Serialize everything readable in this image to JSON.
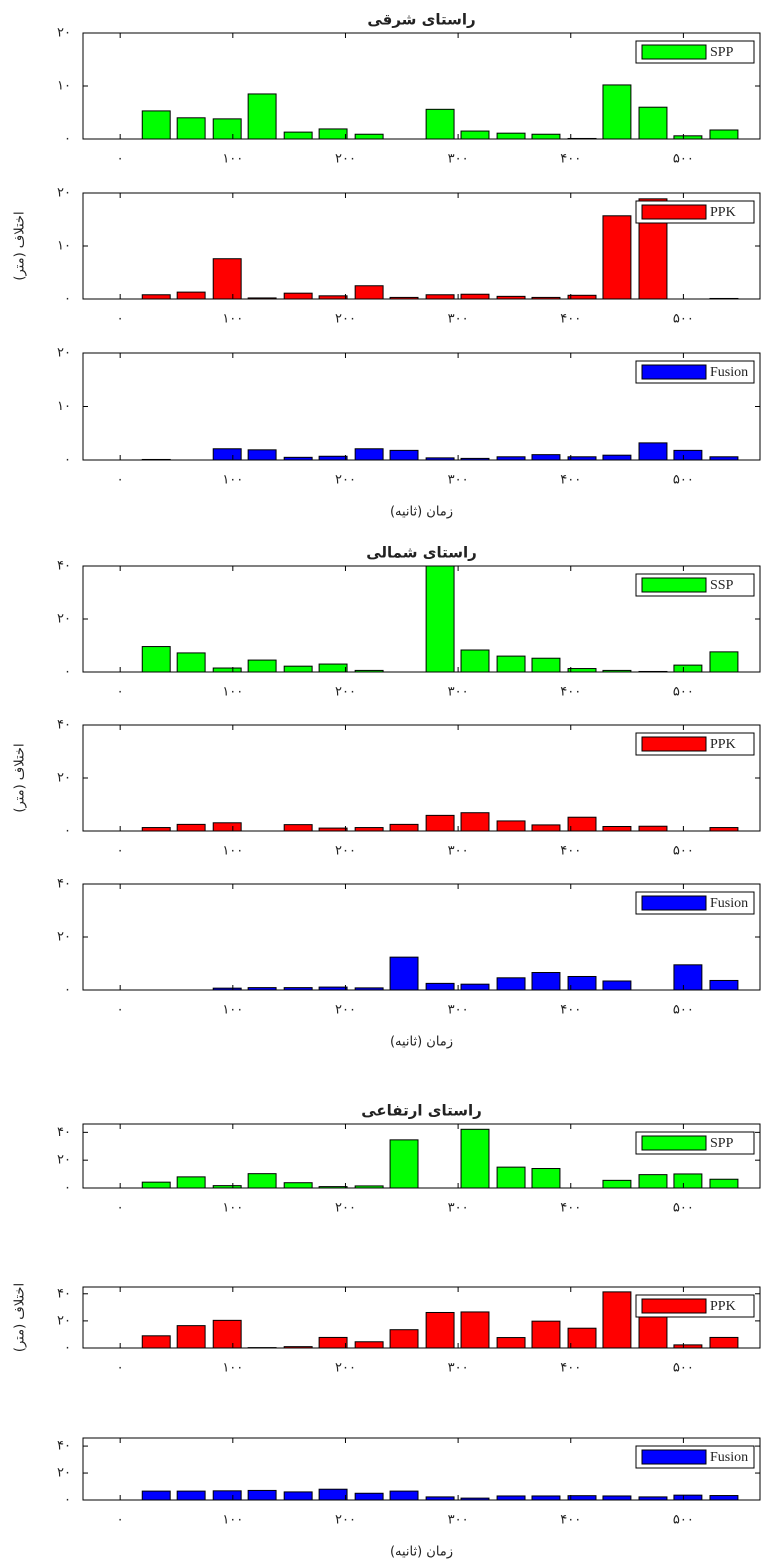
{
  "chart_data": [
    {
      "type": "bar",
      "title": "راستای شرقی",
      "x": [
        32,
        63,
        95,
        126,
        158,
        189,
        221,
        252,
        284,
        315,
        347,
        378,
        410,
        441,
        473,
        504,
        536
      ],
      "series": [
        {
          "name": "SPP",
          "color": "#00ff00",
          "values": [
            5.3,
            4.0,
            3.8,
            8.5,
            1.3,
            1.9,
            0.9,
            0,
            5.6,
            1.5,
            1.1,
            0.9,
            0.1,
            10.2,
            6.0,
            0.6,
            1.7
          ]
        }
      ],
      "xlim": [
        -33,
        568
      ],
      "xticks": [
        {
          "value": 0,
          "label": "۰"
        },
        {
          "value": 100,
          "label": "۱۰۰"
        },
        {
          "value": 200,
          "label": "۲۰۰"
        },
        {
          "value": 300,
          "label": "۳۰۰"
        },
        {
          "value": 400,
          "label": "۴۰۰"
        },
        {
          "value": 500,
          "label": "۵۰۰"
        }
      ],
      "ylim": [
        0,
        20
      ],
      "yticks": [
        {
          "value": 0,
          "label": "۰"
        },
        {
          "value": 10,
          "label": "۱۰"
        },
        {
          "value": 20,
          "label": "۲۰"
        }
      ],
      "legend": "upper right"
    },
    {
      "type": "bar",
      "ylabel": "اختلاف (متر)",
      "x": [
        32,
        63,
        95,
        126,
        158,
        189,
        221,
        252,
        284,
        315,
        347,
        378,
        410,
        441,
        473,
        504,
        536
      ],
      "series": [
        {
          "name": "PPK",
          "color": "#ff0000",
          "values": [
            0.8,
            1.3,
            7.6,
            0.2,
            1.1,
            0.6,
            2.5,
            0.3,
            0.8,
            0.9,
            0.5,
            0.3,
            0.7,
            15.7,
            18.9,
            0,
            0.1
          ]
        }
      ],
      "xlim": [
        -33,
        568
      ],
      "xticks": [
        {
          "value": 0,
          "label": "۰"
        },
        {
          "value": 100,
          "label": "۱۰۰"
        },
        {
          "value": 200,
          "label": "۲۰۰"
        },
        {
          "value": 300,
          "label": "۳۰۰"
        },
        {
          "value": 400,
          "label": "۴۰۰"
        },
        {
          "value": 500,
          "label": "۵۰۰"
        }
      ],
      "ylim": [
        0,
        20
      ],
      "yticks": [
        {
          "value": 0,
          "label": "۰"
        },
        {
          "value": 10,
          "label": "۱۰"
        },
        {
          "value": 20,
          "label": "۲۰"
        }
      ],
      "legend": "upper right"
    },
    {
      "type": "bar",
      "xlabel": "زمان (ثانیه)",
      "x": [
        32,
        63,
        95,
        126,
        158,
        189,
        221,
        252,
        284,
        315,
        347,
        378,
        410,
        441,
        473,
        504,
        536
      ],
      "series": [
        {
          "name": "Fusion",
          "color": "#0000ff",
          "values": [
            0.1,
            0,
            2.1,
            1.9,
            0.5,
            0.7,
            2.1,
            1.8,
            0.4,
            0.3,
            0.6,
            1.0,
            0.6,
            0.9,
            3.2,
            1.8,
            0.6
          ]
        }
      ],
      "xlim": [
        -33,
        568
      ],
      "xticks": [
        {
          "value": 0,
          "label": "۰"
        },
        {
          "value": 100,
          "label": "۱۰۰"
        },
        {
          "value": 200,
          "label": "۲۰۰"
        },
        {
          "value": 300,
          "label": "۳۰۰"
        },
        {
          "value": 400,
          "label": "۴۰۰"
        },
        {
          "value": 500,
          "label": "۵۰۰"
        }
      ],
      "ylim": [
        0,
        20
      ],
      "yticks": [
        {
          "value": 0,
          "label": "۰"
        },
        {
          "value": 10,
          "label": "۱۰"
        },
        {
          "value": 20,
          "label": "۲۰"
        }
      ],
      "legend": "upper right"
    },
    {
      "type": "bar",
      "title": "راستای شمالی",
      "x": [
        32,
        63,
        95,
        126,
        158,
        189,
        221,
        252,
        284,
        315,
        347,
        378,
        410,
        441,
        473,
        504,
        536
      ],
      "series": [
        {
          "name": "SSP",
          "color": "#00ff00",
          "values": [
            9.6,
            7.2,
            1.5,
            4.5,
            2.2,
            3.0,
            0.6,
            0,
            40,
            8.3,
            6.0,
            5.2,
            1.3,
            0.6,
            0.2,
            2.6,
            7.6
          ]
        }
      ],
      "xlim": [
        -33,
        568
      ],
      "xticks": [
        {
          "value": 0,
          "label": "۰"
        },
        {
          "value": 100,
          "label": "۱۰۰"
        },
        {
          "value": 200,
          "label": "۲۰۰"
        },
        {
          "value": 300,
          "label": "۳۰۰"
        },
        {
          "value": 400,
          "label": "۴۰۰"
        },
        {
          "value": 500,
          "label": "۵۰۰"
        }
      ],
      "ylim": [
        0,
        40
      ],
      "yticks": [
        {
          "value": 0,
          "label": "۰"
        },
        {
          "value": 20,
          "label": "۲۰"
        },
        {
          "value": 40,
          "label": "۴۰"
        }
      ],
      "legend": "upper right"
    },
    {
      "type": "bar",
      "ylabel": "اختلاف (متر)",
      "x": [
        32,
        63,
        95,
        126,
        158,
        189,
        221,
        252,
        284,
        315,
        347,
        378,
        410,
        441,
        473,
        504,
        536
      ],
      "series": [
        {
          "name": "PPK",
          "color": "#ff0000",
          "values": [
            1.3,
            2.5,
            3.1,
            0,
            2.4,
            1.1,
            1.3,
            2.5,
            5.9,
            6.9,
            3.8,
            2.3,
            5.2,
            1.7,
            1.8,
            0,
            1.3
          ]
        }
      ],
      "xlim": [
        -33,
        568
      ],
      "xticks": [
        {
          "value": 0,
          "label": "۰"
        },
        {
          "value": 100,
          "label": "۱۰۰"
        },
        {
          "value": 200,
          "label": "۲۰۰"
        },
        {
          "value": 300,
          "label": "۳۰۰"
        },
        {
          "value": 400,
          "label": "۴۰۰"
        },
        {
          "value": 500,
          "label": "۵۰۰"
        }
      ],
      "ylim": [
        0,
        40
      ],
      "yticks": [
        {
          "value": 0,
          "label": "۰"
        },
        {
          "value": 20,
          "label": "۲۰"
        },
        {
          "value": 40,
          "label": "۴۰"
        }
      ],
      "legend": "upper right"
    },
    {
      "type": "bar",
      "xlabel": "زمان (ثانیه)",
      "x": [
        32,
        63,
        95,
        126,
        158,
        189,
        221,
        252,
        284,
        315,
        347,
        378,
        410,
        441,
        473,
        504,
        536
      ],
      "series": [
        {
          "name": "Fusion",
          "color": "#0000ff",
          "values": [
            0,
            0,
            0.7,
            0.9,
            0.9,
            1.1,
            0.8,
            12.4,
            2.5,
            2.2,
            4.6,
            6.6,
            5.1,
            3.4,
            0,
            9.5,
            3.6
          ]
        }
      ],
      "xlim": [
        -33,
        568
      ],
      "xticks": [
        {
          "value": 0,
          "label": "۰"
        },
        {
          "value": 100,
          "label": "۱۰۰"
        },
        {
          "value": 200,
          "label": "۲۰۰"
        },
        {
          "value": 300,
          "label": "۳۰۰"
        },
        {
          "value": 400,
          "label": "۴۰۰"
        },
        {
          "value": 500,
          "label": "۵۰۰"
        }
      ],
      "ylim": [
        0,
        40
      ],
      "yticks": [
        {
          "value": 0,
          "label": "۰"
        },
        {
          "value": 20,
          "label": "۲۰"
        },
        {
          "value": 40,
          "label": "۴۰"
        }
      ],
      "legend": "upper right"
    },
    {
      "type": "bar",
      "title": "راستای ارتفاعی",
      "x": [
        32,
        63,
        95,
        126,
        158,
        189,
        221,
        252,
        284,
        315,
        347,
        378,
        410,
        441,
        473,
        504,
        536
      ],
      "series": [
        {
          "name": "SPP",
          "color": "#00ff00",
          "values": [
            4.2,
            8.0,
            1.7,
            10.3,
            3.8,
            1.0,
            1.5,
            34.6,
            0,
            42.2,
            15.0,
            14.0,
            0,
            5.5,
            9.6,
            10.1,
            6.3
          ]
        }
      ],
      "xlim": [
        -33,
        568
      ],
      "xticks": [
        {
          "value": 0,
          "label": "۰"
        },
        {
          "value": 100,
          "label": "۱۰۰"
        },
        {
          "value": 200,
          "label": "۲۰۰"
        },
        {
          "value": 300,
          "label": "۳۰۰"
        },
        {
          "value": 400,
          "label": "۴۰۰"
        },
        {
          "value": 500,
          "label": "۵۰۰"
        }
      ],
      "ylim": [
        0,
        46
      ],
      "yticks": [
        {
          "value": 0,
          "label": "۰"
        },
        {
          "value": 20,
          "label": "۲۰"
        },
        {
          "value": 40,
          "label": "۴۰"
        }
      ],
      "legend": "upper right"
    },
    {
      "type": "bar",
      "ylabel": "اختلاف (متر)",
      "x": [
        32,
        63,
        95,
        126,
        158,
        189,
        221,
        252,
        284,
        315,
        347,
        378,
        410,
        441,
        473,
        504,
        536
      ],
      "series": [
        {
          "name": "PPK",
          "color": "#ff0000",
          "values": [
            9.0,
            16.5,
            20.4,
            0.3,
            1.0,
            7.8,
            4.6,
            13.5,
            26.2,
            26.6,
            7.7,
            19.8,
            14.6,
            41.4,
            35,
            2.3,
            7.8
          ]
        }
      ],
      "xlim": [
        -33,
        568
      ],
      "xticks": [
        {
          "value": 0,
          "label": "۰"
        },
        {
          "value": 100,
          "label": "۱۰۰"
        },
        {
          "value": 200,
          "label": "۲۰۰"
        },
        {
          "value": 300,
          "label": "۳۰۰"
        },
        {
          "value": 400,
          "label": "۴۰۰"
        },
        {
          "value": 500,
          "label": "۵۰۰"
        }
      ],
      "ylim": [
        0,
        45
      ],
      "yticks": [
        {
          "value": 0,
          "label": "۰"
        },
        {
          "value": 20,
          "label": "۲۰"
        },
        {
          "value": 40,
          "label": "۴۰"
        }
      ],
      "legend": "upper right"
    },
    {
      "type": "bar",
      "xlabel": "زمان (ثانیه)",
      "x": [
        32,
        63,
        95,
        126,
        158,
        189,
        221,
        252,
        284,
        315,
        347,
        378,
        410,
        441,
        473,
        504,
        536
      ],
      "series": [
        {
          "name": "Fusion",
          "color": "#0000ff",
          "values": [
            6.6,
            6.6,
            6.8,
            7.1,
            6.0,
            8.0,
            5.0,
            6.6,
            2.3,
            1.4,
            3.0,
            3.0,
            3.2,
            3.0,
            2.3,
            3.6,
            3.3
          ]
        }
      ],
      "xlim": [
        -33,
        568
      ],
      "xticks": [
        {
          "value": 0,
          "label": "۰"
        },
        {
          "value": 100,
          "label": "۱۰۰"
        },
        {
          "value": 200,
          "label": "۲۰۰"
        },
        {
          "value": 300,
          "label": "۳۰۰"
        },
        {
          "value": 400,
          "label": "۴۰۰"
        },
        {
          "value": 500,
          "label": "۵۰۰"
        }
      ],
      "ylim": [
        0,
        46
      ],
      "yticks": [
        {
          "value": 0,
          "label": "۰"
        },
        {
          "value": 20,
          "label": "۲۰"
        },
        {
          "value": 40,
          "label": "۴۰"
        }
      ],
      "legend": "upper right"
    }
  ]
}
